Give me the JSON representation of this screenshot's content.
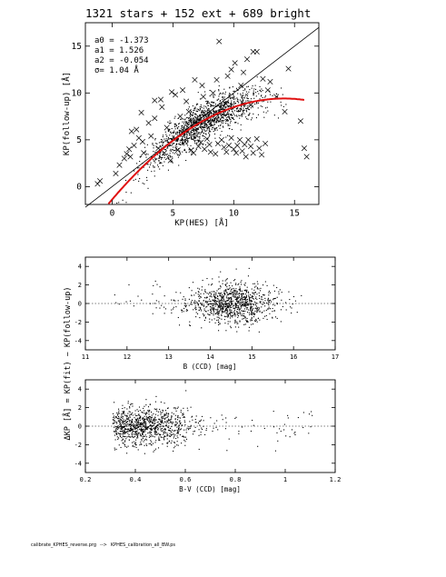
{
  "footer": {
    "script": "calibrate_KPHES_reverse.prg",
    "arrow": "-->",
    "output": "KPHES_calibration_all_BW.ps"
  },
  "chart_data": [
    {
      "type": "scatter",
      "title": "1321 stars + 152 ext + 689 bright",
      "xlabel": "KP(HES) [Å]",
      "ylabel": "KP(follow-up) [Å]",
      "xlim": [
        -2.2,
        17
      ],
      "ylim": [
        -1.9,
        17.5
      ],
      "xticks": [
        0,
        5,
        10,
        15
      ],
      "yticks": [
        0,
        5,
        10,
        15
      ],
      "grid": false,
      "annotations": [
        "a0 = -1.373",
        "a1 = 1.526",
        "a2 = -0.054",
        "σ= 1.04 Å"
      ],
      "identity_line": {
        "name": "y = x",
        "x": [
          -2.2,
          17
        ],
        "y": [
          -2.2,
          17
        ]
      },
      "fit_curve": {
        "color": "#e01010",
        "a0": -1.373,
        "a1": 1.526,
        "a2": -0.054,
        "x_range": [
          -0.3,
          15.8
        ]
      },
      "series": [
        {
          "marker": "dot",
          "description_value": "stars dense cloud",
          "cloud": {
            "x_center": 7.5,
            "x_spread": 3.2,
            "n": 1500,
            "scatter_sd": 1.0
          }
        },
        {
          "marker": "cross",
          "points": [
            [
              -1.2,
              0.3
            ],
            [
              -1.0,
              0.6
            ],
            [
              0.3,
              1.4
            ],
            [
              0.6,
              2.3
            ],
            [
              1.0,
              3.0
            ],
            [
              1.2,
              3.5
            ],
            [
              1.5,
              3.2
            ],
            [
              1.4,
              4.0
            ],
            [
              1.8,
              4.4
            ],
            [
              1.6,
              5.9
            ],
            [
              2.0,
              6.1
            ],
            [
              2.2,
              5.2
            ],
            [
              2.5,
              4.8
            ],
            [
              2.4,
              7.9
            ],
            [
              3.0,
              6.8
            ],
            [
              3.2,
              5.4
            ],
            [
              3.5,
              7.3
            ],
            [
              3.8,
              4.1
            ],
            [
              4.0,
              9.3
            ],
            [
              4.1,
              8.5
            ],
            [
              4.3,
              3.6
            ],
            [
              4.5,
              6.3
            ],
            [
              4.8,
              2.8
            ],
            [
              4.9,
              10.1
            ],
            [
              5.2,
              9.8
            ],
            [
              5.4,
              3.9
            ],
            [
              5.6,
              7.5
            ],
            [
              5.8,
              10.3
            ],
            [
              6.0,
              4.8
            ],
            [
              6.1,
              9.1
            ],
            [
              6.3,
              8.0
            ],
            [
              6.5,
              3.9
            ],
            [
              6.7,
              3.6
            ],
            [
              6.9,
              7.0
            ],
            [
              7.1,
              4.3
            ],
            [
              7.3,
              4.7
            ],
            [
              7.5,
              9.6
            ],
            [
              7.6,
              4.0
            ],
            [
              7.8,
              5.1
            ],
            [
              8.0,
              4.5
            ],
            [
              8.1,
              3.7
            ],
            [
              8.3,
              10.0
            ],
            [
              8.5,
              3.5
            ],
            [
              8.7,
              4.6
            ],
            [
              8.8,
              15.5
            ],
            [
              9.0,
              5.0
            ],
            [
              9.2,
              4.2
            ],
            [
              9.4,
              3.7
            ],
            [
              9.6,
              4.4
            ],
            [
              9.8,
              5.2
            ],
            [
              10.0,
              4.0
            ],
            [
              10.2,
              3.6
            ],
            [
              10.3,
              4.4
            ],
            [
              10.5,
              5.0
            ],
            [
              10.7,
              3.8
            ],
            [
              10.9,
              4.5
            ],
            [
              11.0,
              3.2
            ],
            [
              11.2,
              5.0
            ],
            [
              11.4,
              4.3
            ],
            [
              11.6,
              3.6
            ],
            [
              11.9,
              5.1
            ],
            [
              12.1,
              4.1
            ],
            [
              12.3,
              3.4
            ],
            [
              12.6,
              4.6
            ],
            [
              9.5,
              11.8
            ],
            [
              9.8,
              12.5
            ],
            [
              10.1,
              13.2
            ],
            [
              10.8,
              12.2
            ],
            [
              11.1,
              13.6
            ],
            [
              11.6,
              14.4
            ],
            [
              11.9,
              14.4
            ],
            [
              12.4,
              11.5
            ],
            [
              13.0,
              11.2
            ],
            [
              14.5,
              12.6
            ],
            [
              15.8,
              4.1
            ],
            [
              16.0,
              3.2
            ],
            [
              15.5,
              7.0
            ],
            [
              14.2,
              8.0
            ],
            [
              13.5,
              9.6
            ],
            [
              12.8,
              10.3
            ],
            [
              11.4,
              8.7
            ],
            [
              10.6,
              10.8
            ],
            [
              9.3,
              8.9
            ],
            [
              8.6,
              11.4
            ],
            [
              7.4,
              10.8
            ],
            [
              6.8,
              11.4
            ],
            [
              3.5,
              9.2
            ],
            [
              2.6,
              3.6
            ]
          ]
        }
      ]
    },
    {
      "type": "scatter",
      "xlabel": "B (CCD) [mag]",
      "ylabel": "",
      "xlim": [
        11,
        17
      ],
      "ylim": [
        -5,
        5
      ],
      "xticks": [
        11,
        12,
        13,
        14,
        15,
        16,
        17
      ],
      "yticks": [
        -4,
        -2,
        0,
        2,
        4
      ],
      "zero_line": true,
      "series": [
        {
          "marker": "dot",
          "cloud": {
            "x_center": 14.5,
            "x_spread": 0.55,
            "x_min": 11.7,
            "x_max": 16.2,
            "n": 1000,
            "y_sd": 1.05
          }
        }
      ]
    },
    {
      "type": "scatter",
      "xlabel": "B-V (CCD) [mag]",
      "ylabel": "",
      "xlim": [
        0.2,
        1.2
      ],
      "ylim": [
        -5,
        5
      ],
      "xticks": [
        0.2,
        0.4,
        0.6,
        0.8,
        1,
        1.2
      ],
      "yticks": [
        -4,
        -2,
        0,
        2,
        4
      ],
      "zero_line": true,
      "series": [
        {
          "marker": "dot",
          "cloud": {
            "x_center": 0.42,
            "x_spread": 0.11,
            "x_min": 0.31,
            "x_max": 1.12,
            "n": 1000,
            "y_sd": 1.05
          }
        }
      ]
    }
  ],
  "shared_ylabel": "ΔKP [Å] = KP(fit) − KP(follow-up)"
}
